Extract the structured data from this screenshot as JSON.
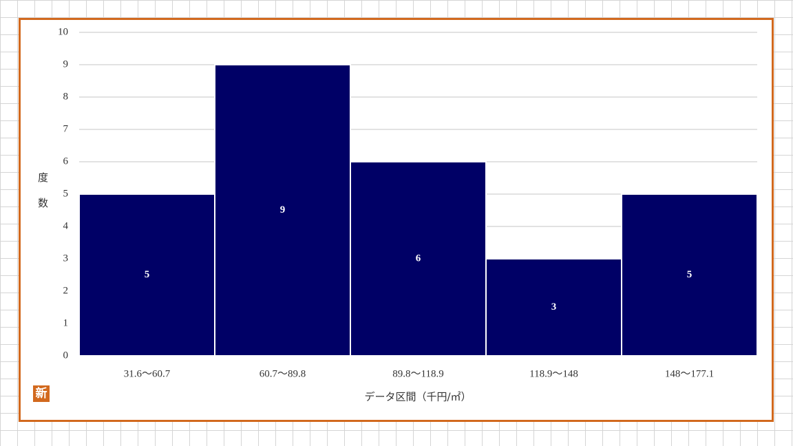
{
  "chart_data": {
    "type": "bar",
    "x_label": "データ区間（千円/㎡）",
    "y_label": "度数",
    "categories": [
      "31.6～60.7",
      "60.7～89.8",
      "89.8～118.9",
      "118.9～148",
      "148～177.1"
    ],
    "values": [
      5,
      9,
      6,
      3,
      5
    ],
    "color": "#000066",
    "ylim": [
      0,
      10
    ],
    "yticks": [
      0,
      1,
      2,
      3,
      4,
      5,
      6,
      7,
      8,
      9,
      10
    ],
    "grid": true
  },
  "badge": "新"
}
